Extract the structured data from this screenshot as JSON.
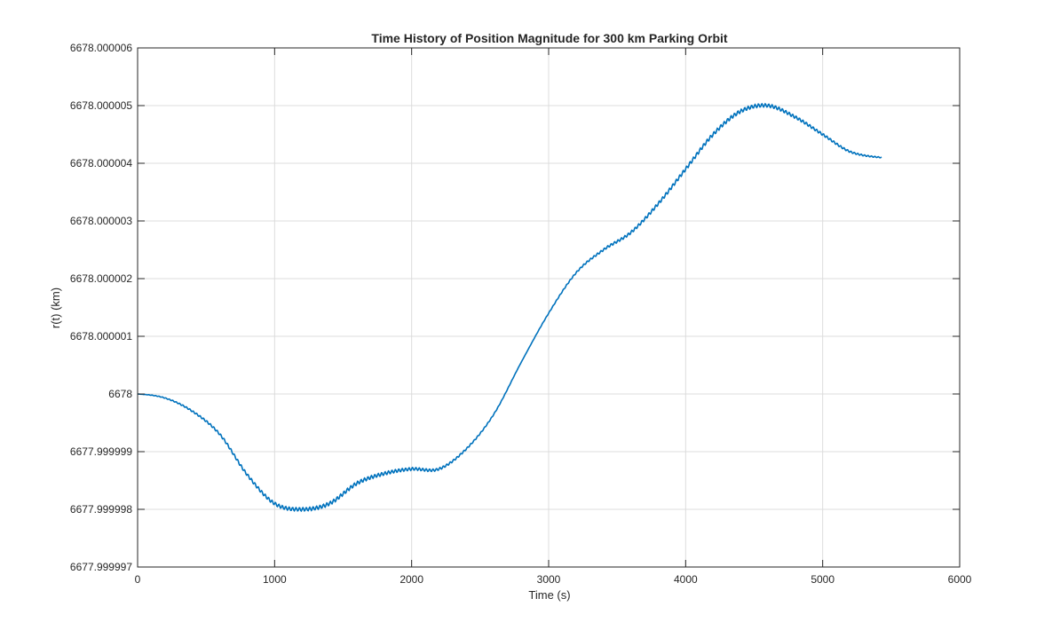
{
  "chart_data": {
    "type": "line",
    "title": "Time History of Position Magnitude for 300 km Parking Orbit",
    "xlabel": "Time (s)",
    "ylabel": "r(t) (km)",
    "xlim": [
      0,
      6000
    ],
    "ylim": [
      6677.999997,
      6678.000006
    ],
    "grid": true,
    "x_ticks": [
      0,
      1000,
      2000,
      3000,
      4000,
      5000,
      6000
    ],
    "x_tick_labels": [
      "0",
      "1000",
      "2000",
      "3000",
      "4000",
      "5000",
      "6000"
    ],
    "y_ticks": [
      6677.999997,
      6677.999998,
      6677.999999,
      6678,
      6678.000001,
      6678.000002,
      6678.000003,
      6678.000004,
      6678.000005,
      6678.000006
    ],
    "y_tick_labels": [
      "6677.999997",
      "6677.999998",
      "6677.999999",
      "6678",
      "6678.000001",
      "6678.000002",
      "6678.000003",
      "6678.000004",
      "6678.000005",
      "6678.000006"
    ],
    "series": [
      {
        "color": "#0072bd",
        "x": [
          0,
          200,
          400,
          600,
          800,
          1000,
          1200,
          1400,
          1600,
          1800,
          2000,
          2200,
          2400,
          2600,
          2800,
          3000,
          3200,
          3400,
          3600,
          3800,
          4000,
          4200,
          4400,
          4600,
          4800,
          5000,
          5200,
          5430
        ],
        "y": [
          6678.0,
          6677.99999993,
          6677.9999997,
          6677.9999993,
          6677.9999986,
          6677.9999981,
          6677.999998,
          6677.9999981,
          6677.99999845,
          6677.99999862,
          6677.9999987,
          6677.9999987,
          6677.99999905,
          6677.99999965,
          6678.00000055,
          6678.0000014,
          6678.0000021,
          6678.0000025,
          6678.0000028,
          6678.0000033,
          6678.0000039,
          6678.0000045,
          6678.0000049,
          6678.000005,
          6678.0000048,
          6678.0000045,
          6678.0000042,
          6678.0000041
        ]
      }
    ]
  }
}
